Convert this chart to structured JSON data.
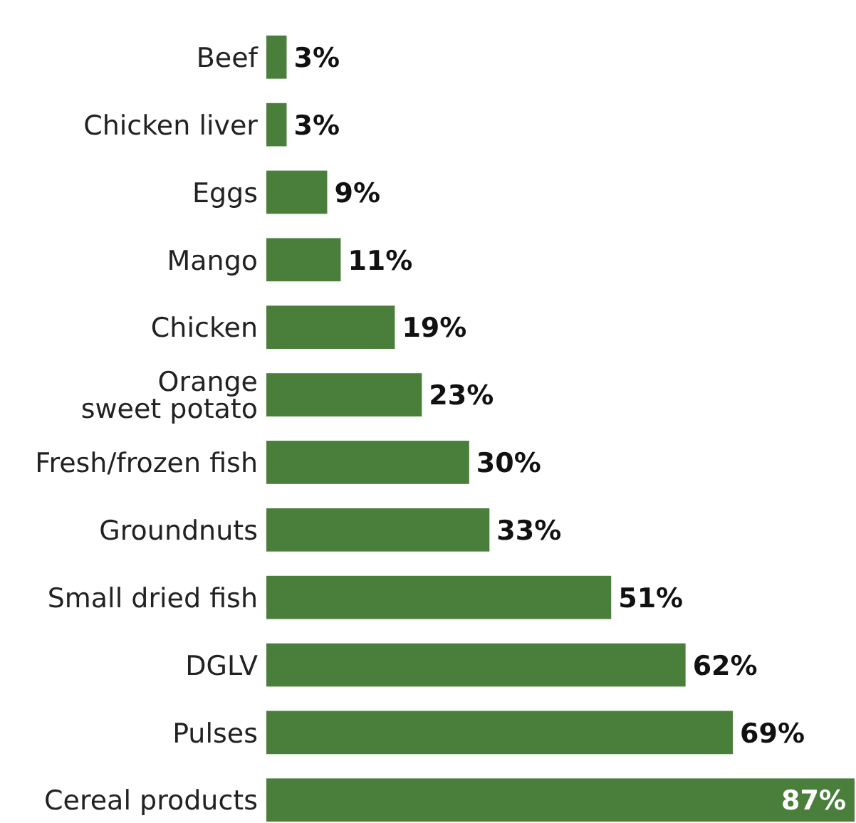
{
  "chart_data": {
    "type": "bar",
    "orientation": "horizontal",
    "categories": [
      "Beef",
      "Chicken liver",
      "Eggs",
      "Mango",
      "Chicken",
      "Orange\nsweet potato",
      "Fresh/frozen fish",
      "Groundnuts",
      "Small dried fish",
      "DGLV",
      "Pulses",
      "Cereal products"
    ],
    "values": [
      3,
      3,
      9,
      11,
      19,
      23,
      30,
      33,
      51,
      62,
      69,
      87
    ],
    "value_labels": [
      "3%",
      "3%",
      "9%",
      "11%",
      "19%",
      "23%",
      "30%",
      "33%",
      "51%",
      "62%",
      "69%",
      "87%"
    ],
    "color": "#4a7f3b"
  }
}
